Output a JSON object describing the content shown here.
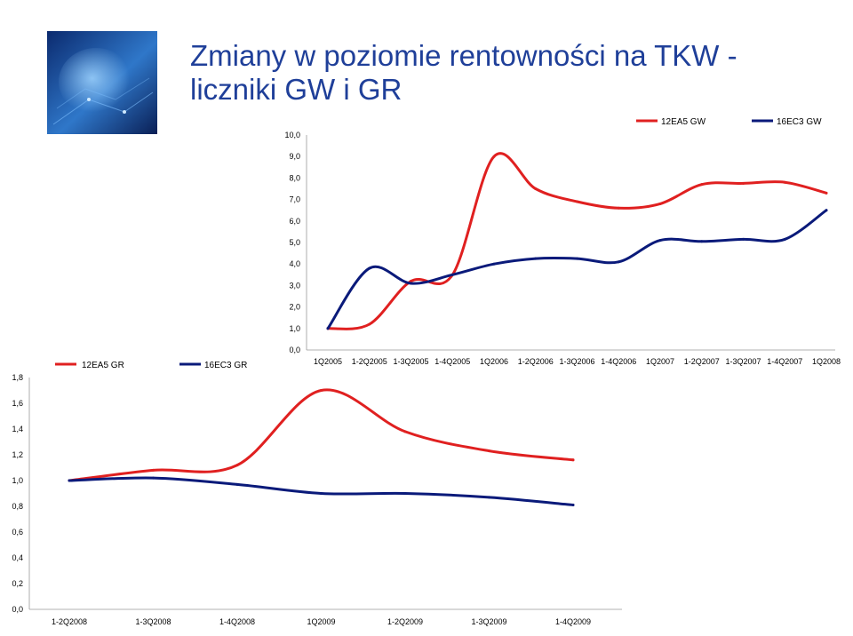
{
  "slide": {
    "title_line1": "Zmiany w poziomie rentowności na TKW -",
    "title_line2": "liczniki GW i GR"
  },
  "colors": {
    "red_series": "#e02020",
    "blue_series": "#0a1a7a",
    "title": "#1f3f99"
  },
  "chart_data": [
    {
      "type": "line",
      "categories": [
        "1Q2005",
        "1-2Q2005",
        "1-3Q2005",
        "1-4Q2005",
        "1Q2006",
        "1-2Q2006",
        "1-3Q2006",
        "1-4Q2006",
        "1Q2007",
        "1-2Q2007",
        "1-3Q2007",
        "1-4Q2007",
        "1Q2008"
      ],
      "series": [
        {
          "name": "12EA5 GW",
          "values": [
            1.0,
            1.2,
            3.2,
            3.5,
            9.0,
            7.5,
            6.9,
            6.6,
            6.8,
            7.7,
            7.75,
            7.8,
            7.3
          ],
          "color": "#e02020"
        },
        {
          "name": "16EC3 GW",
          "values": [
            1.0,
            3.8,
            3.1,
            3.5,
            4.0,
            4.25,
            4.25,
            4.1,
            5.1,
            5.05,
            5.15,
            5.15,
            6.5
          ],
          "color": "#0a1a7a"
        }
      ],
      "ylim": [
        0,
        10
      ],
      "yticks": [
        "0,0",
        "1,0",
        "2,0",
        "3,0",
        "4,0",
        "5,0",
        "6,0",
        "7,0",
        "8,0",
        "9,0",
        "10,0"
      ],
      "legend": "top-right",
      "grid": false
    },
    {
      "type": "line",
      "categories": [
        "1-2Q2008",
        "1-3Q2008",
        "1-4Q2008",
        "1Q2009",
        "1-2Q2009",
        "1-3Q2009",
        "1-4Q2009"
      ],
      "series": [
        {
          "name": "12EA5 GR",
          "values": [
            1.0,
            1.08,
            1.12,
            1.7,
            1.38,
            1.23,
            1.16
          ],
          "color": "#e02020"
        },
        {
          "name": "16EC3 GR",
          "values": [
            1.0,
            1.02,
            0.97,
            0.9,
            0.9,
            0.87,
            0.81
          ],
          "color": "#0a1a7a"
        }
      ],
      "ylim": [
        0,
        1.8
      ],
      "yticks": [
        "0,0",
        "0,2",
        "0,4",
        "0,6",
        "0,8",
        "1,0",
        "1,2",
        "1,4",
        "1,6",
        "1,8"
      ],
      "legend": "top-left",
      "grid": false
    }
  ]
}
